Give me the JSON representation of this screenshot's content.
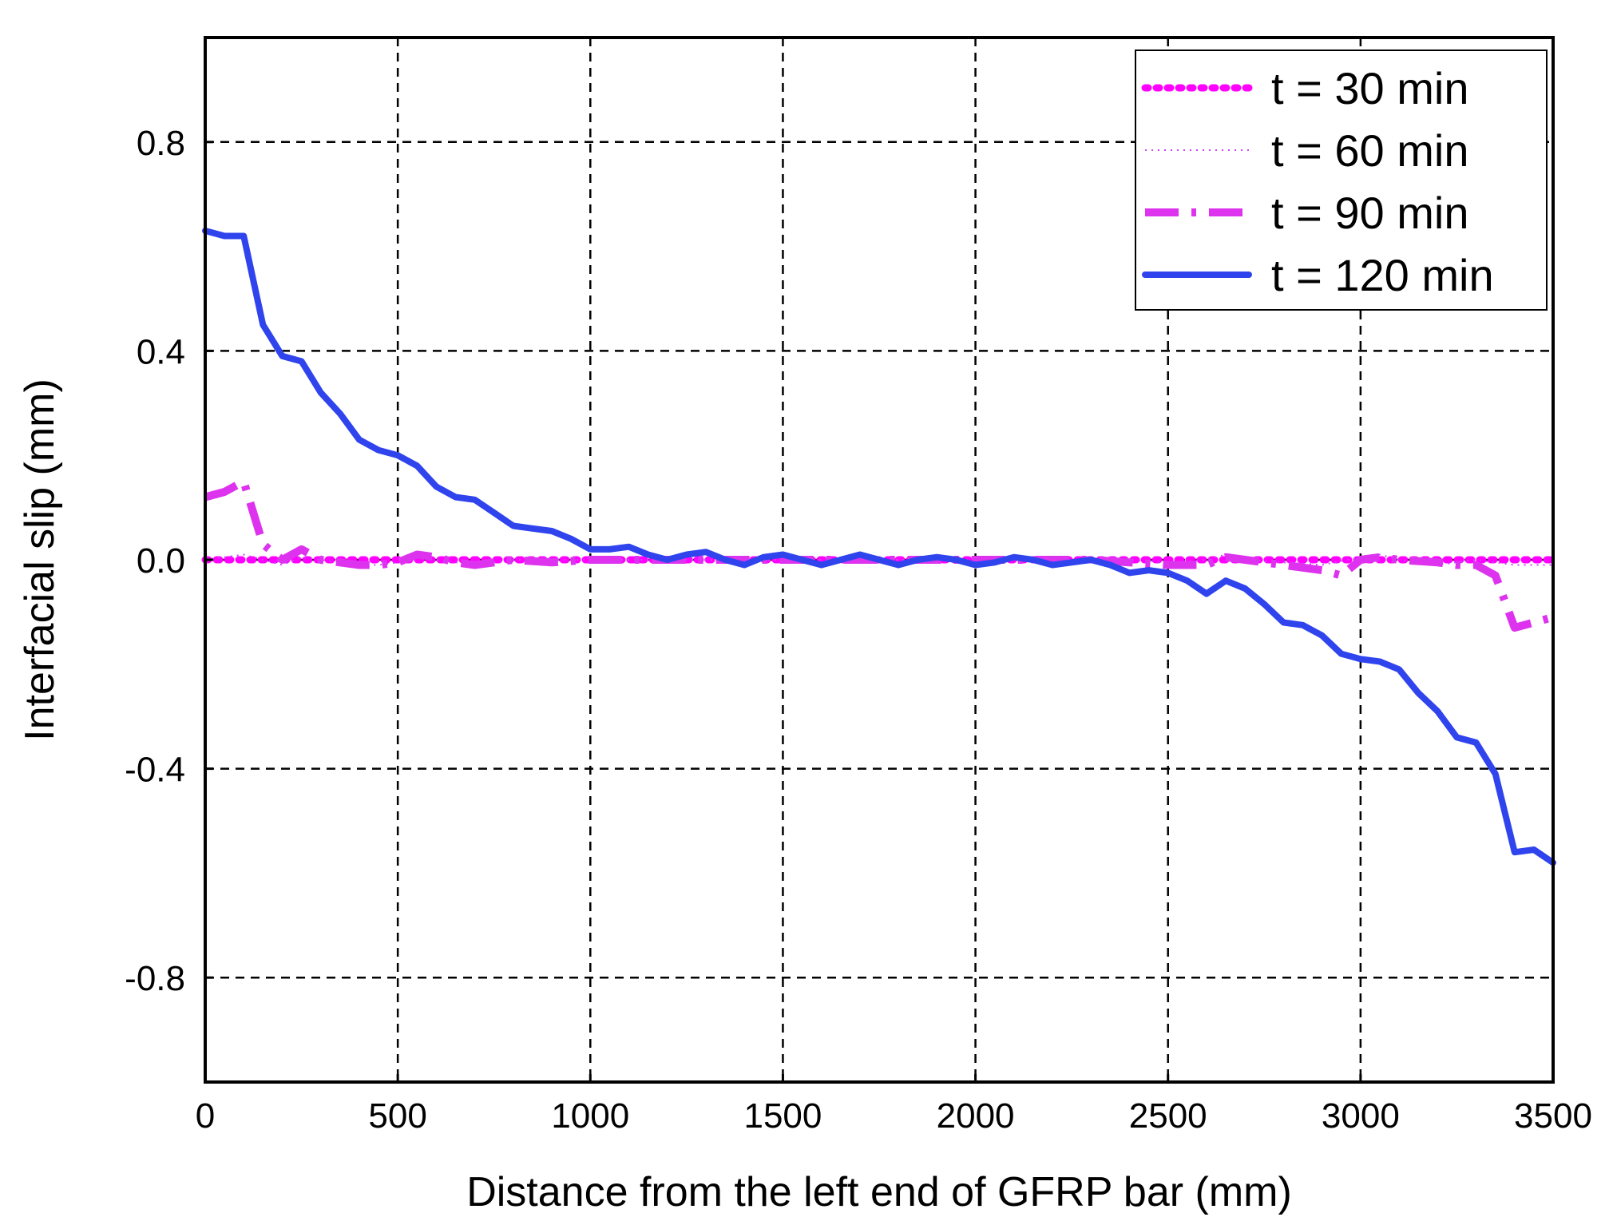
{
  "chart_data": {
    "type": "line",
    "title": "",
    "xlabel": "Distance from the left end of GFRP bar (mm)",
    "ylabel": "Interfacial slip (mm)",
    "xlim": [
      0,
      3500
    ],
    "ylim": [
      -1.0,
      1.0
    ],
    "xticks": [
      0,
      500,
      1000,
      1500,
      2000,
      2500,
      3000,
      3500
    ],
    "xtick_labels": [
      "0",
      "500",
      "1000",
      "1500",
      "2000",
      "2500",
      "3000",
      "3500"
    ],
    "yticks": [
      0.8,
      0.4,
      0.0,
      -0.4,
      -0.8
    ],
    "ytick_labels": [
      "0.8",
      "0.4",
      "0.0",
      "-0.4",
      "-0.8"
    ],
    "grid": true,
    "legend_position": "top-right",
    "series": [
      {
        "name": "t = 30 min",
        "color": "#ff00ff",
        "style": "dotted",
        "points": [
          [
            0,
            0.0
          ],
          [
            50,
            0.0
          ],
          [
            100,
            0.0
          ],
          [
            150,
            0.0
          ],
          [
            200,
            0.0
          ],
          [
            250,
            0.0
          ],
          [
            300,
            0.0
          ],
          [
            400,
            0.0
          ],
          [
            500,
            0.0
          ],
          [
            600,
            0.0
          ],
          [
            700,
            0.0
          ],
          [
            800,
            0.0
          ],
          [
            900,
            0.0
          ],
          [
            1000,
            0.0
          ],
          [
            1100,
            0.0
          ],
          [
            1200,
            0.0
          ],
          [
            1300,
            0.0
          ],
          [
            1400,
            0.0
          ],
          [
            1500,
            0.0
          ],
          [
            1600,
            0.0
          ],
          [
            1700,
            0.0
          ],
          [
            1800,
            0.0
          ],
          [
            1900,
            0.0
          ],
          [
            2000,
            0.0
          ],
          [
            2100,
            0.0
          ],
          [
            2200,
            0.0
          ],
          [
            2300,
            0.0
          ],
          [
            2400,
            0.0
          ],
          [
            2500,
            0.0
          ],
          [
            2600,
            0.0
          ],
          [
            2700,
            0.0
          ],
          [
            2800,
            0.0
          ],
          [
            2900,
            0.0
          ],
          [
            3000,
            0.0
          ],
          [
            3100,
            0.0
          ],
          [
            3200,
            0.0
          ],
          [
            3300,
            0.0
          ],
          [
            3400,
            0.0
          ],
          [
            3500,
            0.0
          ]
        ]
      },
      {
        "name": "t = 60 min",
        "color": "#cc44ff",
        "style": "fine-dotted",
        "points": [
          [
            0,
            0.0
          ],
          [
            50,
            0.005
          ],
          [
            100,
            0.01
          ],
          [
            150,
            0.0
          ],
          [
            200,
            -0.01
          ],
          [
            250,
            0.005
          ],
          [
            300,
            0.0
          ],
          [
            400,
            -0.01
          ],
          [
            450,
            -0.01
          ],
          [
            500,
            -0.005
          ],
          [
            550,
            0.005
          ],
          [
            600,
            0.0
          ],
          [
            700,
            -0.01
          ],
          [
            800,
            0.0
          ],
          [
            900,
            0.0
          ],
          [
            1000,
            0.0
          ],
          [
            1100,
            0.0
          ],
          [
            1200,
            0.0
          ],
          [
            1300,
            0.0
          ],
          [
            1400,
            0.0
          ],
          [
            1500,
            0.0
          ],
          [
            1600,
            0.0
          ],
          [
            1700,
            0.0
          ],
          [
            1800,
            0.0
          ],
          [
            1900,
            0.0
          ],
          [
            2000,
            0.0
          ],
          [
            2100,
            0.0
          ],
          [
            2200,
            0.0
          ],
          [
            2300,
            0.0
          ],
          [
            2400,
            0.0
          ],
          [
            2500,
            -0.005
          ],
          [
            2600,
            0.0
          ],
          [
            2650,
            0.01
          ],
          [
            2700,
            0.0
          ],
          [
            2800,
            -0.005
          ],
          [
            2900,
            -0.01
          ],
          [
            3000,
            0.005
          ],
          [
            3050,
            0.01
          ],
          [
            3100,
            0.0
          ],
          [
            3200,
            -0.01
          ],
          [
            3300,
            0.0
          ],
          [
            3400,
            -0.01
          ],
          [
            3500,
            -0.01
          ]
        ]
      },
      {
        "name": "t = 90 min",
        "color": "#dd33ee",
        "style": "dash-dot",
        "points": [
          [
            0,
            0.12
          ],
          [
            50,
            0.13
          ],
          [
            100,
            0.15
          ],
          [
            150,
            0.03
          ],
          [
            200,
            0.0
          ],
          [
            250,
            0.02
          ],
          [
            300,
            0.0
          ],
          [
            350,
            -0.005
          ],
          [
            400,
            -0.01
          ],
          [
            450,
            -0.01
          ],
          [
            500,
            -0.005
          ],
          [
            550,
            0.01
          ],
          [
            600,
            0.005
          ],
          [
            650,
            -0.005
          ],
          [
            700,
            -0.01
          ],
          [
            750,
            -0.005
          ],
          [
            800,
            0.0
          ],
          [
            900,
            -0.005
          ],
          [
            1000,
            0.0
          ],
          [
            1100,
            0.0
          ],
          [
            1200,
            0.0
          ],
          [
            1300,
            0.0
          ],
          [
            1400,
            0.0
          ],
          [
            1500,
            0.0
          ],
          [
            1600,
            0.0
          ],
          [
            1700,
            0.0
          ],
          [
            1800,
            0.0
          ],
          [
            1900,
            0.0
          ],
          [
            2000,
            0.0
          ],
          [
            2100,
            0.0
          ],
          [
            2200,
            0.0
          ],
          [
            2300,
            0.0
          ],
          [
            2400,
            -0.005
          ],
          [
            2500,
            -0.01
          ],
          [
            2600,
            -0.01
          ],
          [
            2650,
            0.005
          ],
          [
            2700,
            0.0
          ],
          [
            2800,
            -0.01
          ],
          [
            2900,
            -0.02
          ],
          [
            2950,
            -0.03
          ],
          [
            3000,
            0.0
          ],
          [
            3050,
            0.005
          ],
          [
            3100,
            0.0
          ],
          [
            3200,
            -0.005
          ],
          [
            3250,
            -0.01
          ],
          [
            3300,
            -0.01
          ],
          [
            3350,
            -0.03
          ],
          [
            3400,
            -0.13
          ],
          [
            3450,
            -0.12
          ],
          [
            3500,
            -0.11
          ]
        ]
      },
      {
        "name": "t = 120 min",
        "color": "#3044ee",
        "style": "solid",
        "points": [
          [
            0,
            0.63
          ],
          [
            50,
            0.62
          ],
          [
            100,
            0.62
          ],
          [
            150,
            0.45
          ],
          [
            200,
            0.39
          ],
          [
            250,
            0.38
          ],
          [
            300,
            0.32
          ],
          [
            350,
            0.28
          ],
          [
            400,
            0.23
          ],
          [
            450,
            0.21
          ],
          [
            500,
            0.2
          ],
          [
            550,
            0.18
          ],
          [
            600,
            0.14
          ],
          [
            650,
            0.12
          ],
          [
            700,
            0.115
          ],
          [
            750,
            0.09
          ],
          [
            800,
            0.065
          ],
          [
            850,
            0.06
          ],
          [
            900,
            0.055
          ],
          [
            950,
            0.04
          ],
          [
            1000,
            0.02
          ],
          [
            1050,
            0.02
          ],
          [
            1100,
            0.025
          ],
          [
            1150,
            0.01
          ],
          [
            1200,
            0.0
          ],
          [
            1250,
            0.01
          ],
          [
            1300,
            0.015
          ],
          [
            1350,
            0.0
          ],
          [
            1400,
            -0.01
          ],
          [
            1450,
            0.005
          ],
          [
            1500,
            0.01
          ],
          [
            1550,
            0.0
          ],
          [
            1600,
            -0.01
          ],
          [
            1650,
            0.0
          ],
          [
            1700,
            0.01
          ],
          [
            1750,
            0.0
          ],
          [
            1800,
            -0.01
          ],
          [
            1850,
            0.0
          ],
          [
            1900,
            0.005
          ],
          [
            1950,
            0.0
          ],
          [
            2000,
            -0.01
          ],
          [
            2050,
            -0.005
          ],
          [
            2100,
            0.005
          ],
          [
            2150,
            0.0
          ],
          [
            2200,
            -0.01
          ],
          [
            2250,
            -0.005
          ],
          [
            2300,
            0.0
          ],
          [
            2350,
            -0.01
          ],
          [
            2400,
            -0.025
          ],
          [
            2450,
            -0.02
          ],
          [
            2500,
            -0.025
          ],
          [
            2550,
            -0.04
          ],
          [
            2600,
            -0.065
          ],
          [
            2650,
            -0.04
          ],
          [
            2700,
            -0.055
          ],
          [
            2750,
            -0.085
          ],
          [
            2800,
            -0.12
          ],
          [
            2850,
            -0.125
          ],
          [
            2900,
            -0.145
          ],
          [
            2950,
            -0.18
          ],
          [
            3000,
            -0.19
          ],
          [
            3050,
            -0.195
          ],
          [
            3100,
            -0.21
          ],
          [
            3150,
            -0.255
          ],
          [
            3200,
            -0.29
          ],
          [
            3250,
            -0.34
          ],
          [
            3300,
            -0.35
          ],
          [
            3350,
            -0.41
          ],
          [
            3400,
            -0.56
          ],
          [
            3450,
            -0.555
          ],
          [
            3500,
            -0.58
          ]
        ]
      }
    ]
  }
}
